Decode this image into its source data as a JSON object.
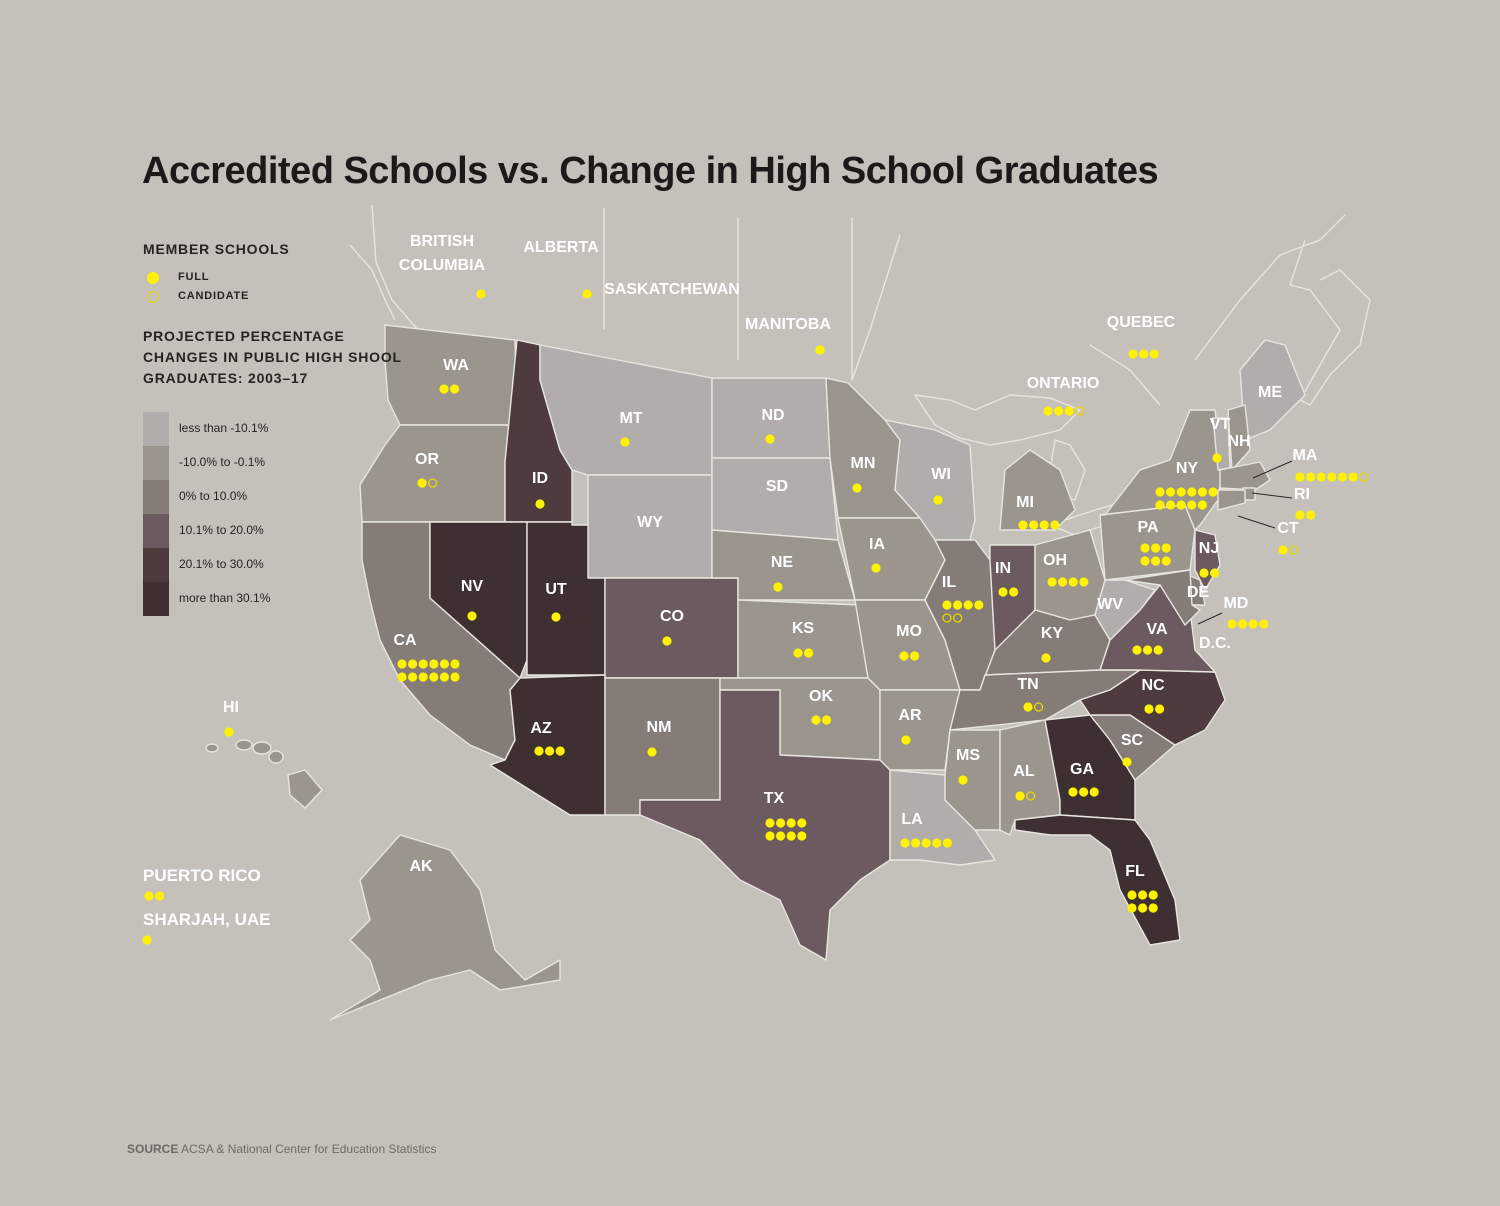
{
  "title": "Accredited Schools vs. Change in High School Graduates",
  "legend": {
    "member_heading": "MEMBER SCHOOLS",
    "full_label": "FULL",
    "candidate_label": "CANDIDATE",
    "projection_heading_lines": [
      "PROJECTED PERCENTAGE",
      "CHANGES IN PUBLIC HIGH SHOOL",
      "GRADUATES: 2003–17"
    ],
    "scale": [
      {
        "label": "less than -10.1%",
        "color": "#b2adaa"
      },
      {
        "label": "-10.0% to -0.1%",
        "color": "#9c958d"
      },
      {
        "label": "0% to 10.0%",
        "color": "#857b77"
      },
      {
        "label": "10.1% to 20.0%",
        "color": "#6b5a60"
      },
      {
        "label": "20.1% to 30.0%",
        "color": "#4d3b3e"
      },
      {
        "label": "more than 30.1%",
        "color": "#3e2f31"
      }
    ]
  },
  "colors": {
    "background": "#c5c1ba",
    "full_dot": "#fff200",
    "candidate_ring": "#e6d800",
    "state_border": "#e8e5df",
    "label_white": "#ffffff"
  },
  "regions": [
    {
      "name": "WA",
      "full": 2,
      "candidate": 0,
      "category": 1
    },
    {
      "name": "OR",
      "full": 1,
      "candidate": 1,
      "category": 1
    },
    {
      "name": "CA",
      "full": 12,
      "candidate": 0,
      "category": 2
    },
    {
      "name": "ID",
      "full": 1,
      "candidate": 0,
      "category": 4
    },
    {
      "name": "NV",
      "full": 1,
      "candidate": 0,
      "category": 5
    },
    {
      "name": "UT",
      "full": 1,
      "candidate": 0,
      "category": 5
    },
    {
      "name": "AZ",
      "full": 3,
      "candidate": 0,
      "category": 5
    },
    {
      "name": "MT",
      "full": 1,
      "candidate": 0,
      "category": 0
    },
    {
      "name": "WY",
      "full": 0,
      "candidate": 0,
      "category": 0
    },
    {
      "name": "CO",
      "full": 1,
      "candidate": 0,
      "category": 3
    },
    {
      "name": "NM",
      "full": 1,
      "candidate": 0,
      "category": 2
    },
    {
      "name": "ND",
      "full": 1,
      "candidate": 0,
      "category": 0
    },
    {
      "name": "SD",
      "full": 0,
      "candidate": 0,
      "category": 0
    },
    {
      "name": "NE",
      "full": 1,
      "candidate": 0,
      "category": 1
    },
    {
      "name": "KS",
      "full": 2,
      "candidate": 0,
      "category": 1
    },
    {
      "name": "OK",
      "full": 2,
      "candidate": 0,
      "category": 1
    },
    {
      "name": "TX",
      "full": 8,
      "candidate": 0,
      "category": 3
    },
    {
      "name": "MN",
      "full": 1,
      "candidate": 0,
      "category": 1
    },
    {
      "name": "IA",
      "full": 1,
      "candidate": 0,
      "category": 1
    },
    {
      "name": "MO",
      "full": 2,
      "candidate": 0,
      "category": 1
    },
    {
      "name": "AR",
      "full": 1,
      "candidate": 0,
      "category": 1
    },
    {
      "name": "LA",
      "full": 5,
      "candidate": 0,
      "category": 0
    },
    {
      "name": "WI",
      "full": 1,
      "candidate": 0,
      "category": 0
    },
    {
      "name": "IL",
      "full": 4,
      "candidate": 2,
      "category": 2
    },
    {
      "name": "MI",
      "full": 4,
      "candidate": 0,
      "category": 1
    },
    {
      "name": "IN",
      "full": 2,
      "candidate": 0,
      "category": 3
    },
    {
      "name": "OH",
      "full": 4,
      "candidate": 0,
      "category": 1
    },
    {
      "name": "KY",
      "full": 1,
      "candidate": 0,
      "category": 2
    },
    {
      "name": "TN",
      "full": 1,
      "candidate": 1,
      "category": 2
    },
    {
      "name": "MS",
      "full": 1,
      "candidate": 0,
      "category": 1
    },
    {
      "name": "AL",
      "full": 1,
      "candidate": 1,
      "category": 1
    },
    {
      "name": "GA",
      "full": 3,
      "candidate": 0,
      "category": 5
    },
    {
      "name": "FL",
      "full": 6,
      "candidate": 0,
      "category": 5
    },
    {
      "name": "SC",
      "full": 1,
      "candidate": 0,
      "category": 2
    },
    {
      "name": "NC",
      "full": 2,
      "candidate": 0,
      "category": 4
    },
    {
      "name": "VA",
      "full": 3,
      "candidate": 0,
      "category": 3
    },
    {
      "name": "WV",
      "full": 0,
      "candidate": 0,
      "category": 0
    },
    {
      "name": "PA",
      "full": 6,
      "candidate": 0,
      "category": 1
    },
    {
      "name": "NY",
      "full": 11,
      "candidate": 0,
      "category": 1
    },
    {
      "name": "NJ",
      "full": 2,
      "candidate": 0,
      "category": 3
    },
    {
      "name": "DE",
      "full": 0,
      "candidate": 0,
      "category": 2
    },
    {
      "name": "MD",
      "full": 4,
      "candidate": 0,
      "category": 2
    },
    {
      "name": "D.C.",
      "full": 0,
      "candidate": 0,
      "category": null
    },
    {
      "name": "ME",
      "full": 0,
      "candidate": 0,
      "category": 0
    },
    {
      "name": "VT",
      "full": 1,
      "candidate": 0,
      "category": 0
    },
    {
      "name": "NH",
      "full": 0,
      "candidate": 0,
      "category": 1
    },
    {
      "name": "MA",
      "full": 6,
      "candidate": 1,
      "category": 1
    },
    {
      "name": "RI",
      "full": 2,
      "candidate": 0,
      "category": 1
    },
    {
      "name": "CT",
      "full": 1,
      "candidate": 1,
      "category": 1
    },
    {
      "name": "AK",
      "full": 0,
      "candidate": 0,
      "category": 1
    },
    {
      "name": "HI",
      "full": 1,
      "candidate": 0,
      "category": 1
    },
    {
      "name": "BRITISH COLUMBIA",
      "full": 1,
      "candidate": 0,
      "category": null
    },
    {
      "name": "ALBERTA",
      "full": 1,
      "candidate": 0,
      "category": null
    },
    {
      "name": "SASKATCHEWAN",
      "full": 0,
      "candidate": 0,
      "category": null
    },
    {
      "name": "MANITOBA",
      "full": 1,
      "candidate": 0,
      "category": null
    },
    {
      "name": "ONTARIO",
      "full": 3,
      "candidate": 1,
      "category": null
    },
    {
      "name": "QUEBEC",
      "full": 3,
      "candidate": 0,
      "category": null
    },
    {
      "name": "PUERTO RICO",
      "full": 2,
      "candidate": 0,
      "category": null
    },
    {
      "name": "SHARJAH, UAE",
      "full": 1,
      "candidate": 0,
      "category": null
    }
  ],
  "source_label": "SOURCE",
  "source_text": "ACSA & National Center for Education Statistics"
}
